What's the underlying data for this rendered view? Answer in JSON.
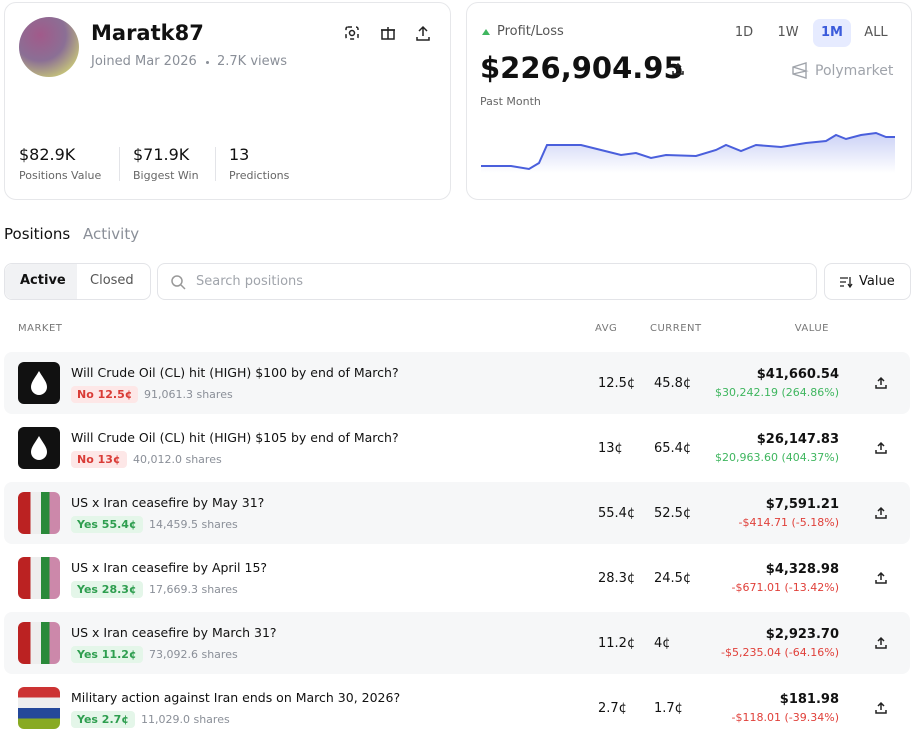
{
  "profile": {
    "username": "Maratk87",
    "joined": "Joined Mar 2026",
    "views": "2.7K views",
    "stats": [
      {
        "value": "$82.9K",
        "label": "Positions Value"
      },
      {
        "value": "$71.9K",
        "label": "Biggest Win"
      },
      {
        "value": "13",
        "label": "Predictions"
      }
    ]
  },
  "pnl": {
    "label": "Profit/Loss",
    "value": "$226,904.95",
    "period": "Past Month",
    "ranges": [
      "1D",
      "1W",
      "1M",
      "ALL"
    ],
    "active_range": 2,
    "brand": "Polymarket"
  },
  "tabs": [
    "Positions",
    "Activity"
  ],
  "filters": [
    "Active",
    "Closed"
  ],
  "search_placeholder": "Search positions",
  "sort": "Value",
  "columns": [
    "MARKET",
    "AVG",
    "CURRENT",
    "VALUE"
  ],
  "rows": [
    {
      "icon": "oil",
      "title": "Will Crude Oil (CL) hit (HIGH) $100 by end of March?",
      "outcome": "No 12.5¢",
      "side": "no",
      "shares": "91,061.3 shares",
      "avg": "12.5¢",
      "current": "45.8¢",
      "value": "$41,660.54",
      "pnl": "$30,242.19 (264.86%)",
      "up": true
    },
    {
      "icon": "oil",
      "title": "Will Crude Oil (CL) hit (HIGH) $105 by end of March?",
      "outcome": "No 13¢",
      "side": "no",
      "shares": "40,012.0 shares",
      "avg": "13¢",
      "current": "65.4¢",
      "value": "$26,147.83",
      "pnl": "$20,963.60 (404.37%)",
      "up": true
    },
    {
      "icon": "flags",
      "title": "US x Iran ceasefire by May 31?",
      "outcome": "Yes 55.4¢",
      "side": "yes",
      "shares": "14,459.5 shares",
      "avg": "55.4¢",
      "current": "52.5¢",
      "value": "$7,591.21",
      "pnl": "-$414.71 (-5.18%)",
      "up": false
    },
    {
      "icon": "flags",
      "title": "US x Iran ceasefire by April 15?",
      "outcome": "Yes 28.3¢",
      "side": "yes",
      "shares": "17,669.3 shares",
      "avg": "28.3¢",
      "current": "24.5¢",
      "value": "$4,328.98",
      "pnl": "-$671.01 (-13.42%)",
      "up": false
    },
    {
      "icon": "flags",
      "title": "US x Iran ceasefire by March 31?",
      "outcome": "Yes 11.2¢",
      "side": "yes",
      "shares": "73,092.6 shares",
      "avg": "11.2¢",
      "current": "4¢",
      "value": "$2,923.70",
      "pnl": "-$5,235.04 (-64.16%)",
      "up": false
    },
    {
      "icon": "flags2",
      "title": "Military action against Iran ends on March 30, 2026?",
      "outcome": "Yes 2.7¢",
      "side": "yes",
      "shares": "11,029.0 shares",
      "avg": "2.7¢",
      "current": "1.7¢",
      "value": "$181.98",
      "pnl": "-$118.01 (-39.34%)",
      "up": false
    }
  ]
}
